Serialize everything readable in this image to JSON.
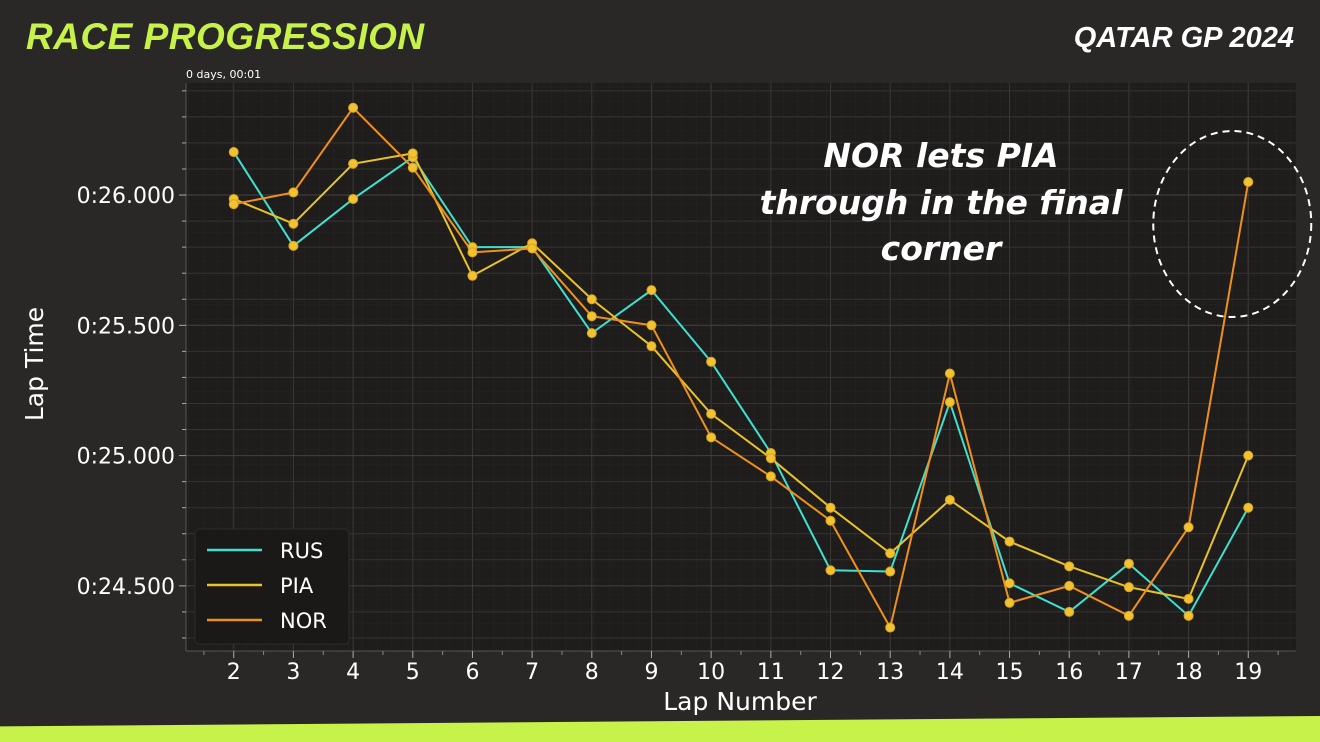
{
  "header": {
    "title": "RACE PROGRESSION",
    "event": "QATAR GP 2024"
  },
  "chart_data": {
    "type": "line",
    "title": "",
    "offset_label": "0 days, 00:01",
    "xlabel": "Lap Number",
    "ylabel": "Lap Time",
    "x": [
      2,
      3,
      4,
      5,
      6,
      7,
      8,
      9,
      10,
      11,
      12,
      13,
      14,
      15,
      16,
      17,
      18,
      19
    ],
    "xlim": [
      1.2,
      19.8
    ],
    "ylim": [
      24.25,
      26.43
    ],
    "y_ticks": [
      24.5,
      25.0,
      25.5,
      26.0
    ],
    "y_tick_labels": [
      "0:24.500",
      "0:25.000",
      "0:25.500",
      "0:26.000"
    ],
    "grid": true,
    "legend_position": "bottom-left",
    "series": [
      {
        "name": "RUS",
        "color": "#3fe0d0",
        "values": [
          26.165,
          25.805,
          25.985,
          26.145,
          25.8,
          25.8,
          25.47,
          25.635,
          25.36,
          25.01,
          24.56,
          24.555,
          25.205,
          24.51,
          24.4,
          24.585,
          24.385,
          24.8
        ]
      },
      {
        "name": "PIA",
        "color": "#e8c22a",
        "values": [
          25.985,
          25.89,
          26.12,
          26.16,
          25.69,
          25.815,
          25.6,
          25.42,
          25.16,
          24.99,
          24.8,
          24.625,
          24.83,
          24.67,
          24.575,
          24.495,
          24.45,
          25.0
        ]
      },
      {
        "name": "NOR",
        "color": "#f0901c",
        "values": [
          25.965,
          26.01,
          26.335,
          26.105,
          25.78,
          25.795,
          25.535,
          25.5,
          25.07,
          24.92,
          24.75,
          24.34,
          25.315,
          24.435,
          24.5,
          24.385,
          24.725,
          26.05
        ]
      }
    ],
    "annotation": {
      "text_lines": [
        "NOR lets PIA",
        "through in the final",
        "corner"
      ],
      "lap": 19
    }
  }
}
